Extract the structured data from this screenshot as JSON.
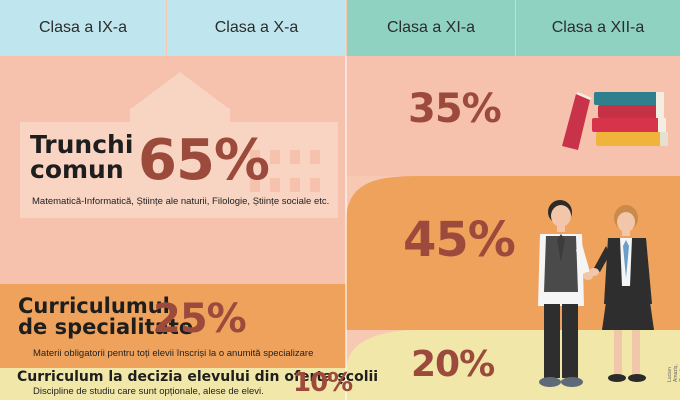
{
  "headers": {
    "col1": "Clasa a IX-a",
    "col2": "Clasa a X-a",
    "col3": "Clasa a XI-a",
    "col4": "Clasa a XII-a"
  },
  "trunchi": {
    "title_line1": "Trunchi",
    "title_line2": "comun",
    "percent": "65%",
    "desc": "Matematică-Informatică, Științe ale naturii, Filologie, Științe sociale etc."
  },
  "specialitate": {
    "title_line1": "Curriculumul",
    "title_line2": "de specialitate",
    "percent": "25%",
    "desc": "Materii obligatorii pentru toți elevii înscriși la o anumită specializare"
  },
  "decizia": {
    "title": "Curriculum la decizia elevului din oferta școlii",
    "percent": "10%",
    "desc": "Discipline de studiu care sunt opționale, alese de elevi."
  },
  "upper": {
    "p1": "35%",
    "p2": "45%",
    "p3": "20%"
  },
  "credit": "Lucian Amaziș, Ziarul de Iași",
  "colors": {
    "header_left": "#bfe6ee",
    "header_right": "#8fd2c2",
    "pink": "#f7c9b3",
    "orange": "#f0a35c",
    "yellow": "#f1e6a6",
    "percent": "#9b4a3c"
  }
}
